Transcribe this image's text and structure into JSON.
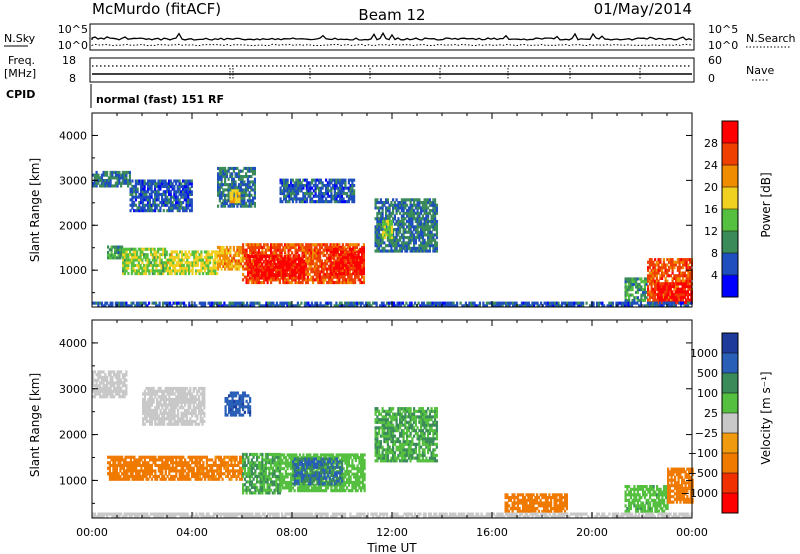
{
  "header": {
    "station": "McMurdo (fitACF)",
    "beam": "Beam 12",
    "date": "01/May/2014"
  },
  "strip_labels": {
    "nsky": "N.Sky",
    "nsearch": "N.Search",
    "freq": "Freq.",
    "freq_unit": "[MHz]",
    "nave": "Nave",
    "cpid": "CPID",
    "cpid_value": "normal (fast) 151 RF",
    "nsky_ticks": [
      "10^5",
      "10^0"
    ],
    "nsearch_ticks": [
      "10^5",
      "10^0"
    ],
    "freq_ticks": [
      "18",
      "8"
    ],
    "nave_ticks": [
      "60",
      "0"
    ]
  },
  "colors": {
    "power_scale": [
      "#0000ff",
      "#1f4fbf",
      "#3a8a5a",
      "#55c040",
      "#f0d020",
      "#f08c00",
      "#f04000",
      "#ff0000"
    ],
    "velocity_scale": [
      "#1e3a9a",
      "#2a5fb8",
      "#3a8a5a",
      "#55c040",
      "#c8c8c8",
      "#f09a10",
      "#f07a00",
      "#f03000",
      "#ff0000"
    ]
  },
  "chart_data": [
    {
      "type": "heatmap",
      "title": "",
      "xlabel": "",
      "ylabel": "Slant Range [km]",
      "xlim": [
        "00:00",
        "00:00"
      ],
      "ylim": [
        180,
        4500
      ],
      "x_ticks": [
        "00:00",
        "04:00",
        "08:00",
        "12:00",
        "16:00",
        "20:00",
        "00:00"
      ],
      "y_ticks": [
        "1000",
        "2000",
        "3000",
        "4000"
      ],
      "colorbar": {
        "label": "Power [dB]",
        "ticks": [
          "4",
          "8",
          "12",
          "16",
          "20",
          "24",
          "28"
        ],
        "range": [
          0,
          30
        ]
      },
      "regions": [
        {
          "t0": 0.6,
          "t1": 1.2,
          "r0": 1250,
          "r1": 1500,
          "value": 10
        },
        {
          "t0": 1.2,
          "t1": 3.0,
          "r0": 900,
          "r1": 1500,
          "value": 14
        },
        {
          "t0": 3.0,
          "t1": 5.0,
          "r0": 900,
          "r1": 1400,
          "value": 16
        },
        {
          "t0": 5.0,
          "t1": 6.0,
          "r0": 1000,
          "r1": 1500,
          "value": 20
        },
        {
          "t0": 6.0,
          "t1": 10.9,
          "r0": 700,
          "r1": 1600,
          "value": 24
        },
        {
          "t0": 6.2,
          "t1": 8.5,
          "r0": 800,
          "r1": 1300,
          "value": 28
        },
        {
          "t0": 9.5,
          "t1": 10.9,
          "r0": 900,
          "r1": 1500,
          "value": 28
        },
        {
          "t0": 0.0,
          "t1": 1.5,
          "r0": 2850,
          "r1": 3200,
          "value": 8
        },
        {
          "t0": 1.5,
          "t1": 4.0,
          "r0": 2300,
          "r1": 3000,
          "value": 6
        },
        {
          "t0": 5.0,
          "t1": 6.5,
          "r0": 2400,
          "r1": 3300,
          "value": 8
        },
        {
          "t0": 5.5,
          "t1": 5.9,
          "r0": 2500,
          "r1": 2800,
          "value": 18
        },
        {
          "t0": 7.5,
          "t1": 10.5,
          "r0": 2500,
          "r1": 3000,
          "value": 6
        },
        {
          "t0": 11.3,
          "t1": 13.8,
          "r0": 1400,
          "r1": 2600,
          "value": 8
        },
        {
          "t0": 11.6,
          "t1": 12.0,
          "r0": 1700,
          "r1": 2100,
          "value": 14
        },
        {
          "t0": 21.3,
          "t1": 22.2,
          "r0": 300,
          "r1": 800,
          "value": 10
        },
        {
          "t0": 22.2,
          "t1": 24.0,
          "r0": 250,
          "r1": 1250,
          "value": 24
        },
        {
          "t0": 22.6,
          "t1": 24.0,
          "r0": 250,
          "r1": 700,
          "value": 28
        },
        {
          "t0": 0.0,
          "t1": 24.0,
          "r0": 180,
          "r1": 260,
          "value": 6
        }
      ]
    },
    {
      "type": "heatmap",
      "title": "",
      "xlabel": "Time UT",
      "ylabel": "Slant Range [km]",
      "xlim": [
        "00:00",
        "00:00"
      ],
      "ylim": [
        180,
        4500
      ],
      "x_ticks": [
        "00:00",
        "04:00",
        "08:00",
        "12:00",
        "16:00",
        "20:00",
        "00:00"
      ],
      "y_ticks": [
        "1000",
        "2000",
        "3000",
        "4000"
      ],
      "colorbar": {
        "label": "Velocity [m s⁻¹]",
        "ticks": [
          "1000",
          "500",
          "100",
          "25",
          "−25",
          "−100",
          "−500",
          "−1000"
        ]
      },
      "regions": [
        {
          "t0": 0.6,
          "t1": 4.2,
          "r0": 1000,
          "r1": 1500,
          "value": -150
        },
        {
          "t0": 4.2,
          "t1": 6.0,
          "r0": 1000,
          "r1": 1500,
          "value": -80
        },
        {
          "t0": 6.0,
          "t1": 7.5,
          "r0": 700,
          "r1": 1550,
          "value": 60
        },
        {
          "t0": 7.5,
          "t1": 10.9,
          "r0": 750,
          "r1": 1550,
          "value": 40
        },
        {
          "t0": 8.0,
          "t1": 10.0,
          "r0": 900,
          "r1": 1450,
          "value": 300
        },
        {
          "t0": 0.0,
          "t1": 1.4,
          "r0": 2800,
          "r1": 3400,
          "value": 0
        },
        {
          "t0": 5.3,
          "t1": 6.3,
          "r0": 2400,
          "r1": 2900,
          "value": 600
        },
        {
          "t0": 2.0,
          "t1": 4.5,
          "r0": 2200,
          "r1": 3000,
          "value": 0
        },
        {
          "t0": 11.3,
          "t1": 13.8,
          "r0": 1400,
          "r1": 2600,
          "value": 60
        },
        {
          "t0": 16.5,
          "t1": 19.0,
          "r0": 300,
          "r1": 700,
          "value": -150
        },
        {
          "t0": 21.3,
          "t1": 23.0,
          "r0": 300,
          "r1": 900,
          "value": 50
        },
        {
          "t0": 23.0,
          "t1": 24.0,
          "r0": 500,
          "r1": 1250,
          "value": -200
        },
        {
          "t0": 0.0,
          "t1": 24.0,
          "r0": 180,
          "r1": 260,
          "value": 0
        }
      ]
    }
  ]
}
